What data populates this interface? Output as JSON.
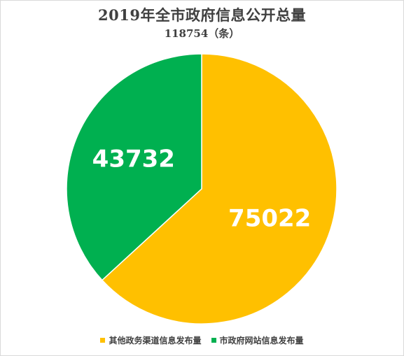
{
  "chart_data": {
    "type": "pie",
    "title": "2019年全市政府信息公开总量",
    "subtitle": "118754（条）",
    "slices": [
      {
        "label": "其他政务渠道信息发布量",
        "value": 75022,
        "color": "#FFC000"
      },
      {
        "label": "市政府网站信息发布量",
        "value": 43732,
        "color": "#00B050"
      }
    ],
    "start_angle": "12 o'clock",
    "direction": "clockwise",
    "data_label_color": "#FFFFFF",
    "legend_position": "bottom"
  }
}
